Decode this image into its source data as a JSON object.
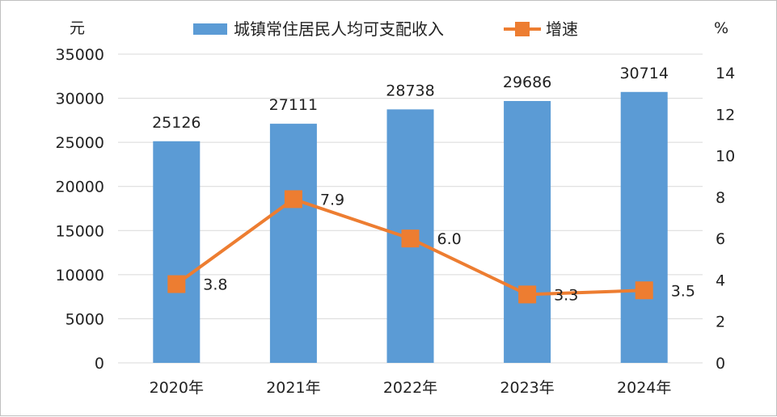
{
  "chart_data": {
    "type": "bar",
    "categories": [
      "2020年",
      "2021年",
      "2022年",
      "2023年",
      "2024年"
    ],
    "series": [
      {
        "name": "城镇常住居民人均可支配收入",
        "type": "bar",
        "axis": "left",
        "values": [
          25126,
          27111,
          28738,
          29686,
          30714
        ],
        "labels": [
          "25126",
          "27111",
          "28738",
          "29686",
          "30714"
        ],
        "color": "#5b9bd5"
      },
      {
        "name": "增速",
        "type": "line",
        "axis": "right",
        "values": [
          3.8,
          7.9,
          6.0,
          3.3,
          3.5
        ],
        "labels": [
          "3.8",
          "7.9",
          "6.0",
          "3.3",
          "3.5"
        ],
        "color": "#ed7d31"
      }
    ],
    "y_left": {
      "unit": "元",
      "ylim": [
        0,
        35000
      ],
      "ticks": [
        "35000",
        "30000",
        "25000",
        "20000",
        "15000",
        "10000",
        "5000",
        "0"
      ]
    },
    "y_right": {
      "unit": "%",
      "ylim": [
        0,
        14
      ],
      "ticks": [
        "14",
        "12",
        "10",
        "8",
        "6",
        "4",
        "2",
        "0"
      ]
    },
    "grid": true,
    "legend_position": "top"
  }
}
